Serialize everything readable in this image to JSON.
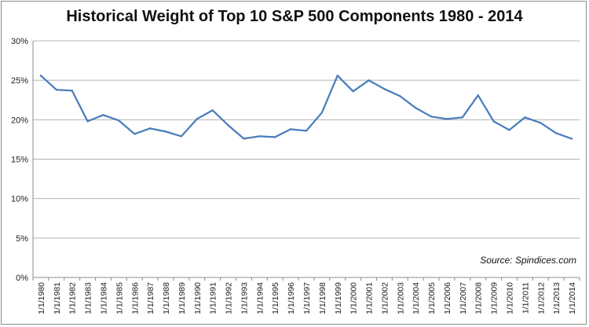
{
  "chart_data": {
    "type": "line",
    "title": "Historical Weight of Top 10 S&P 500 Components 1980 - 2014",
    "xlabel": "",
    "ylabel": "",
    "ylim": [
      0,
      0.3
    ],
    "y_ticks": [
      "0%",
      "5%",
      "10%",
      "15%",
      "20%",
      "25%",
      "30%"
    ],
    "grid": "horizontal",
    "legend": "none",
    "annotation": "Source: Spindices.com",
    "x": [
      "1/1/1980",
      "1/1/1981",
      "1/1/1982",
      "1/1/1983",
      "1/1/1984",
      "1/1/1985",
      "1/1/1986",
      "1/1/1987",
      "1/1/1988",
      "1/1/1989",
      "1/1/1990",
      "1/1/1991",
      "1/1/1992",
      "1/1/1993",
      "1/1/1994",
      "1/1/1995",
      "1/1/1996",
      "1/1/1997",
      "1/1/1998",
      "1/1/1999",
      "1/1/2000",
      "1/1/2001",
      "1/1/2002",
      "1/1/2003",
      "1/1/2004",
      "1/1/2005",
      "1/1/2006",
      "1/1/2007",
      "1/1/2008",
      "1/1/2009",
      "1/1/2010",
      "1/1/2011",
      "1/1/2012",
      "1/1/2013",
      "1/1/2014"
    ],
    "values": [
      0.256,
      0.238,
      0.237,
      0.198,
      0.206,
      0.199,
      0.182,
      0.189,
      0.185,
      0.179,
      0.201,
      0.212,
      0.193,
      0.176,
      0.179,
      0.178,
      0.188,
      0.186,
      0.209,
      0.256,
      0.236,
      0.25,
      0.239,
      0.23,
      0.215,
      0.204,
      0.201,
      0.203,
      0.231,
      0.198,
      0.187,
      0.203,
      0.196,
      0.183,
      0.176
    ],
    "line_color": "#4a7ebb",
    "grid_color": "#b3b3b3"
  }
}
